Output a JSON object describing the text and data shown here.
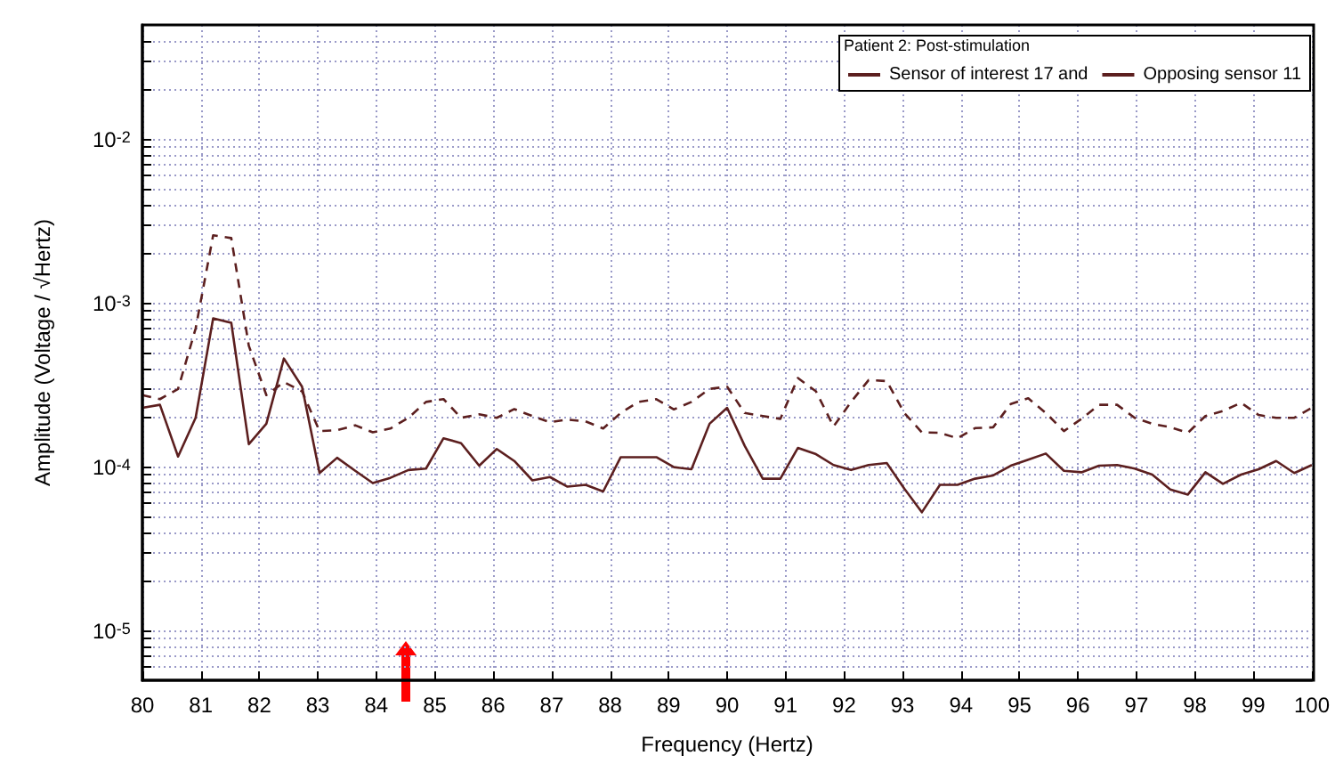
{
  "chart_data": {
    "type": "line",
    "legend_title": "Patient 2: Post-stimulation",
    "xlabel": "Frequency (Hertz)",
    "ylabel": "Amplitude (Voltage / √Hertz)",
    "x": [
      80,
      80.3,
      80.61,
      80.91,
      81.21,
      81.52,
      81.82,
      82.12,
      82.42,
      82.73,
      83.03,
      83.33,
      83.64,
      83.94,
      84.24,
      84.55,
      84.85,
      85.15,
      85.45,
      85.76,
      86.06,
      86.36,
      86.67,
      86.97,
      87.27,
      87.58,
      87.88,
      88.18,
      88.48,
      88.79,
      89.09,
      89.39,
      89.7,
      90,
      90.3,
      90.61,
      90.91,
      91.21,
      91.52,
      91.82,
      92.12,
      92.42,
      92.73,
      93.03,
      93.33,
      93.64,
      93.94,
      94.24,
      94.55,
      94.85,
      95.15,
      95.45,
      95.76,
      96.06,
      96.36,
      96.67,
      96.97,
      97.27,
      97.58,
      97.88,
      98.18,
      98.48,
      98.79,
      99.09,
      99.39,
      99.7,
      100
    ],
    "series": [
      {
        "name": "Sensor of interest 17 and",
        "color": "#5c1f1f",
        "line_style": "dashed",
        "values": [
          0.000275,
          0.00026,
          0.0003,
          0.0007,
          0.0026,
          0.0025,
          0.00055,
          0.000275,
          0.00033,
          0.00029,
          0.000166,
          0.000168,
          0.00018,
          0.000163,
          0.000172,
          0.0002,
          0.00025,
          0.00026,
          0.0002,
          0.00021,
          0.0002,
          0.000226,
          0.000205,
          0.000188,
          0.000195,
          0.00019,
          0.000172,
          0.000214,
          0.00025,
          0.00026,
          0.000225,
          0.00025,
          0.0003,
          0.00031,
          0.000214,
          0.000205,
          0.000197,
          0.00035,
          0.00029,
          0.000177,
          0.00025,
          0.00034,
          0.000335,
          0.000214,
          0.000163,
          0.000162,
          0.00015,
          0.000173,
          0.000175,
          0.000243,
          0.000263,
          0.000214,
          0.000166,
          0.000197,
          0.00024,
          0.00024,
          0.0002,
          0.000184,
          0.000175,
          0.000162,
          0.000205,
          0.00022,
          0.000247,
          0.000208,
          0.0002,
          0.0002,
          0.00023
        ]
      },
      {
        "name": "Opposing sensor 11",
        "color": "#5c1f1f",
        "line_style": "solid",
        "values": [
          0.00023,
          0.00024,
          0.000116,
          0.0002,
          0.00081,
          0.00076,
          0.000138,
          0.000184,
          0.00046,
          0.00031,
          9.2e-05,
          0.000114,
          9.5e-05,
          8e-05,
          8.6e-05,
          9.6e-05,
          9.8e-05,
          0.00015,
          0.00014,
          0.000102,
          0.000129,
          0.000109,
          8.3e-05,
          8.7e-05,
          7.6e-05,
          7.8e-05,
          7.1e-05,
          0.000115,
          0.000115,
          0.000115,
          0.0001,
          9.7e-05,
          0.000184,
          0.00023,
          0.000135,
          8.5e-05,
          8.5e-05,
          0.000131,
          0.00012,
          0.000103,
          9.6e-05,
          0.000103,
          0.000106,
          7.4e-05,
          5.3e-05,
          7.8e-05,
          7.8e-05,
          8.5e-05,
          8.9e-05,
          0.000102,
          0.000111,
          0.000121,
          9.5e-05,
          9.3e-05,
          0.000102,
          0.000103,
          9.8e-05,
          9e-05,
          7.3e-05,
          6.8e-05,
          9.3e-05,
          7.9e-05,
          9e-05,
          9.7e-05,
          0.000109,
          9.2e-05,
          0.000103
        ]
      }
    ],
    "xlim": [
      80,
      100
    ],
    "xticks": [
      80,
      81,
      82,
      83,
      84,
      85,
      86,
      87,
      88,
      89,
      90,
      91,
      92,
      93,
      94,
      95,
      96,
      97,
      98,
      99,
      100
    ],
    "log": "y",
    "ylim": [
      5e-06,
      0.05
    ],
    "yticks": [
      {
        "value": 6e-06,
        "label": null
      },
      {
        "value": 7e-06,
        "label": null
      },
      {
        "value": 8e-06,
        "label": null
      },
      {
        "value": 9e-06,
        "label": null
      },
      {
        "value": 1e-05,
        "label": "10$^{-5}$"
      },
      {
        "value": 2e-05,
        "label": null
      },
      {
        "value": 3e-05,
        "label": null
      },
      {
        "value": 4e-05,
        "label": null
      },
      {
        "value": 5e-05,
        "label": null
      },
      {
        "value": 6e-05,
        "label": null
      },
      {
        "value": 7e-05,
        "label": null
      },
      {
        "value": 8e-05,
        "label": null
      },
      {
        "value": 9e-05,
        "label": null
      },
      {
        "value": 0.0001,
        "label": "10$^{-4}$"
      },
      {
        "value": 0.0002,
        "label": null
      },
      {
        "value": 0.0003,
        "label": null
      },
      {
        "value": 0.0004,
        "label": null
      },
      {
        "value": 0.0005,
        "label": null
      },
      {
        "value": 0.0006,
        "label": null
      },
      {
        "value": 0.0007,
        "label": null
      },
      {
        "value": 0.0008,
        "label": null
      },
      {
        "value": 0.0009,
        "label": null
      },
      {
        "value": 0.001,
        "label": "10$^{-3}$"
      },
      {
        "value": 0.002,
        "label": null
      },
      {
        "value": 0.003,
        "label": null
      },
      {
        "value": 0.004,
        "label": null
      },
      {
        "value": 0.005,
        "label": null
      },
      {
        "value": 0.006,
        "label": null
      },
      {
        "value": 0.007,
        "label": null
      },
      {
        "value": 0.008,
        "label": null
      },
      {
        "value": 0.009,
        "label": null
      },
      {
        "value": 0.01,
        "label": "10$^{-2}$"
      },
      {
        "value": 0.02,
        "label": null
      },
      {
        "value": 0.03,
        "label": null
      },
      {
        "value": 0.04,
        "label": null
      }
    ],
    "grid": true,
    "legend": "top right",
    "marker": "none"
  }
}
